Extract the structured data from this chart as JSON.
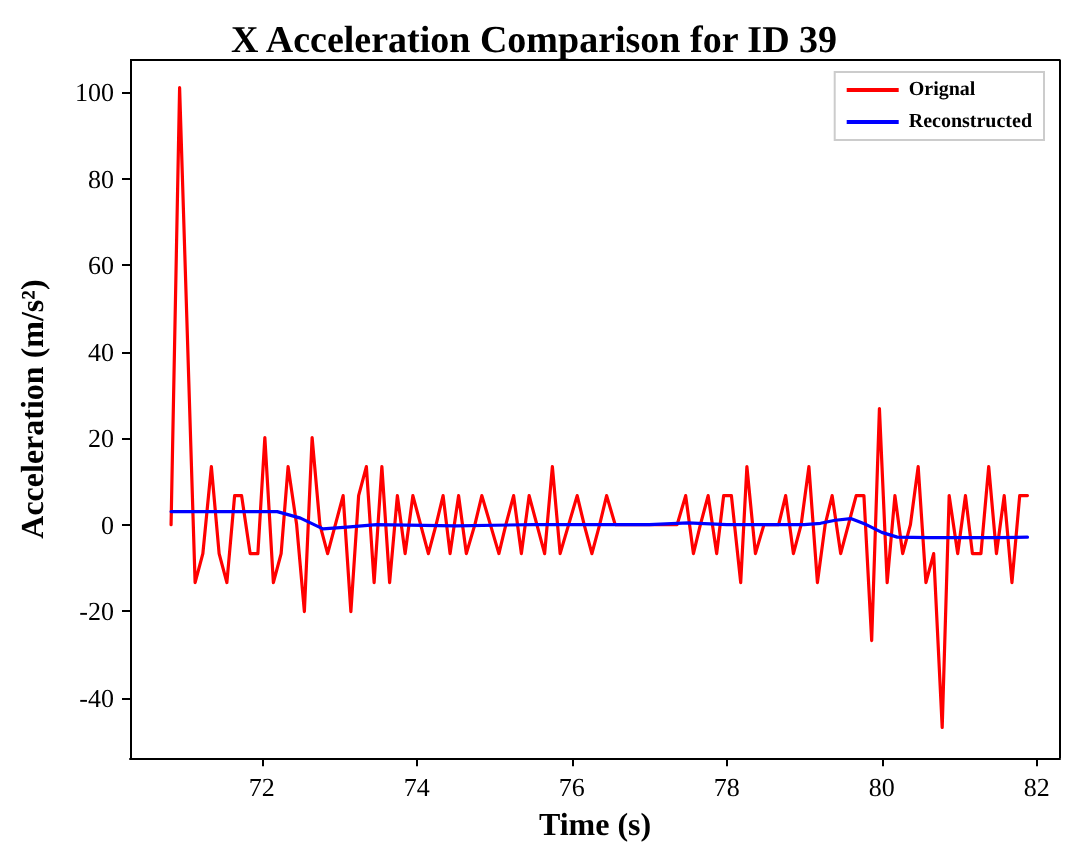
{
  "chart_data": {
    "type": "line",
    "title": "X Acceleration Comparison for ID 39",
    "xlabel": "Time (s)",
    "ylabel": "Acceleration (m/s²)",
    "xlim": [
      70.3,
      82.3
    ],
    "xticks": [
      72,
      74,
      76,
      78,
      80,
      82
    ],
    "ylim": [
      -54,
      107.4
    ],
    "yticks": [
      -40,
      -20,
      0,
      20,
      40,
      60,
      80,
      100
    ],
    "grid": false,
    "legend": "top right",
    "marker": "none",
    "line_style": "solid",
    "series": [
      {
        "name": "Orignal",
        "color": "#ff0000",
        "x": [
          70.83,
          70.94,
          71.14,
          71.24,
          71.35,
          71.45,
          71.55,
          71.65,
          71.74,
          71.85,
          71.95,
          72.04,
          72.15,
          72.25,
          72.34,
          72.45,
          72.55,
          72.65,
          72.75,
          72.85,
          72.95,
          73.05,
          73.15,
          73.25,
          73.35,
          73.45,
          73.55,
          73.65,
          73.75,
          73.85,
          73.95,
          74.05,
          74.15,
          74.25,
          74.34,
          74.43,
          74.54,
          74.64,
          74.75,
          74.84,
          74.95,
          75.06,
          75.15,
          75.25,
          75.35,
          75.45,
          75.55,
          75.65,
          75.75,
          75.85,
          75.96,
          76.07,
          76.16,
          76.26,
          76.36,
          76.45,
          76.56,
          76.67,
          77.36,
          77.47,
          77.57,
          77.66,
          77.76,
          77.87,
          77.96,
          78.06,
          78.18,
          78.26,
          78.37,
          78.48,
          78.67,
          78.76,
          78.86,
          78.96,
          79.06,
          79.17,
          79.27,
          79.36,
          79.47,
          79.57,
          79.67,
          79.77,
          79.87,
          79.97,
          80.07,
          80.17,
          80.27,
          80.37,
          80.47,
          80.57,
          80.67,
          80.78,
          80.87,
          80.98,
          81.08,
          81.17,
          81.28,
          81.38,
          81.48,
          81.58,
          81.68,
          81.78,
          81.88
        ],
        "values": [
          0,
          101,
          -13.4,
          -6.7,
          13.4,
          -6.7,
          -13.4,
          6.7,
          6.7,
          -6.7,
          -6.7,
          20.1,
          -13.4,
          -6.7,
          13.4,
          0,
          -20.1,
          20.1,
          0,
          -6.7,
          0,
          6.7,
          -20.1,
          6.7,
          13.4,
          -13.4,
          13.4,
          -13.4,
          6.7,
          -6.7,
          6.7,
          0,
          -6.7,
          0,
          6.7,
          -6.7,
          6.7,
          -6.7,
          0,
          6.7,
          0,
          -6.7,
          0,
          6.7,
          -6.7,
          6.7,
          0,
          -6.7,
          13.4,
          -6.7,
          0,
          6.7,
          0,
          -6.7,
          0,
          6.7,
          0,
          0,
          0,
          6.7,
          -6.7,
          0,
          6.7,
          -6.7,
          6.7,
          6.7,
          -13.4,
          13.4,
          -6.7,
          0,
          0,
          6.7,
          -6.7,
          0,
          13.4,
          -13.4,
          0,
          6.7,
          -6.7,
          0,
          6.7,
          6.7,
          -26.8,
          26.8,
          -13.4,
          6.7,
          -6.7,
          0,
          13.4,
          -13.4,
          -6.7,
          -46.9,
          6.7,
          -6.7,
          6.7,
          -6.7,
          -6.7,
          13.4,
          -6.7,
          6.7,
          -13.4,
          6.7,
          6.7
        ]
      },
      {
        "name": "Reconstructed",
        "color": "#0000ff",
        "x": [
          70.83,
          72.2,
          72.5,
          72.79,
          73.1,
          73.48,
          74.5,
          75.5,
          76.5,
          77.0,
          77.5,
          78.0,
          78.5,
          79.0,
          79.21,
          79.4,
          79.6,
          79.8,
          80.0,
          80.2,
          80.6,
          81.0,
          81.5,
          81.88
        ],
        "values": [
          3,
          3,
          1.5,
          -1,
          -0.6,
          0,
          -0.3,
          0,
          0,
          0,
          0.4,
          0,
          0,
          0,
          0.3,
          1,
          1.4,
          0,
          -1.8,
          -2.9,
          -3,
          -3,
          -3,
          -2.9
        ]
      }
    ]
  }
}
